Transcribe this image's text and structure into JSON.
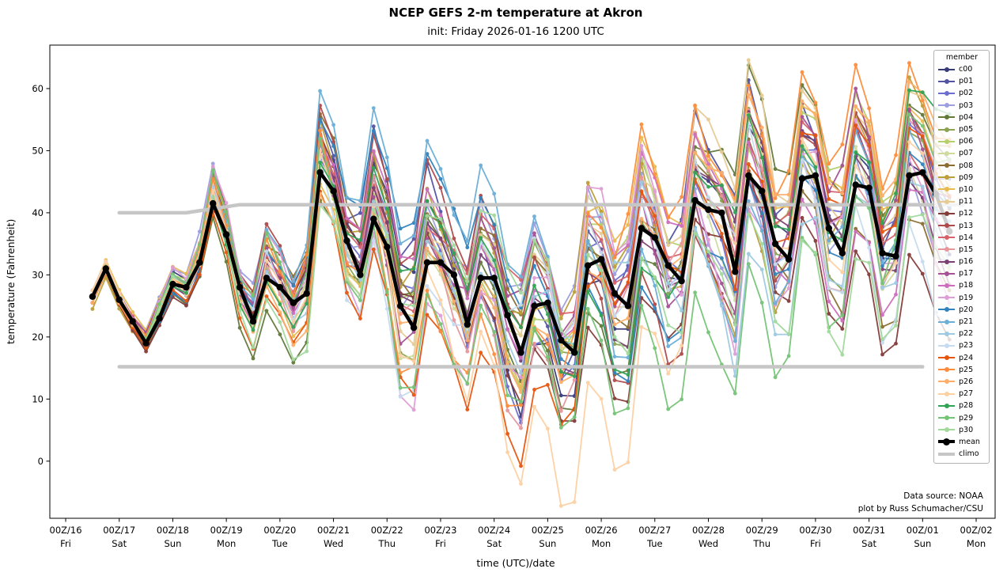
{
  "title": "NCEP GEFS 2-m temperature at Akron",
  "subtitle": "init: Friday 2026-01-16 1200 UTC",
  "annotations": {
    "source": "Data source: NOAA",
    "credit": "plot by Russ Schumacher/CSU"
  },
  "legend": {
    "title": "member"
  },
  "axes": {
    "xlabel": "time (UTC)/date",
    "ylabel": "temperature (Fahrenheit)",
    "yticks": [
      0,
      10,
      20,
      30,
      40,
      50,
      60
    ],
    "ylim": [
      -9.2,
      67
    ],
    "xlim_hours": [
      -19.1,
      404.5
    ],
    "xticks": [
      {
        "t": -12,
        "utc": "00Z/16",
        "day": "Fri"
      },
      {
        "t": 12,
        "utc": "00Z/17",
        "day": "Sat"
      },
      {
        "t": 36,
        "utc": "00Z/18",
        "day": "Sun"
      },
      {
        "t": 60,
        "utc": "00Z/19",
        "day": "Mon"
      },
      {
        "t": 84,
        "utc": "00Z/20",
        "day": "Tue"
      },
      {
        "t": 108,
        "utc": "00Z/21",
        "day": "Wed"
      },
      {
        "t": 132,
        "utc": "00Z/22",
        "day": "Thu"
      },
      {
        "t": 156,
        "utc": "00Z/23",
        "day": "Fri"
      },
      {
        "t": 180,
        "utc": "00Z/24",
        "day": "Sat"
      },
      {
        "t": 204,
        "utc": "00Z/25",
        "day": "Sun"
      },
      {
        "t": 228,
        "utc": "00Z/26",
        "day": "Mon"
      },
      {
        "t": 252,
        "utc": "00Z/27",
        "day": "Tue"
      },
      {
        "t": 276,
        "utc": "00Z/28",
        "day": "Wed"
      },
      {
        "t": 300,
        "utc": "00Z/29",
        "day": "Thu"
      },
      {
        "t": 324,
        "utc": "00Z/30",
        "day": "Fri"
      },
      {
        "t": 348,
        "utc": "00Z/31",
        "day": "Sat"
      },
      {
        "t": 372,
        "utc": "00Z/01",
        "day": "Sun"
      },
      {
        "t": 396,
        "utc": "00Z/02",
        "day": "Mon"
      }
    ]
  },
  "chart_data": {
    "type": "line",
    "time_start_hours": 0,
    "time_step_hours": 6,
    "time_end_hours": 384,
    "units": "degrees Fahrenheit, x = hours since init 12Z Jan 16",
    "mean": {
      "label": "mean",
      "color": "#000000",
      "values": [
        26.5,
        31,
        26,
        22.5,
        19,
        23,
        28.5,
        28,
        32,
        41.5,
        36.5,
        28,
        22.5,
        29.5,
        28,
        25.5,
        27,
        46.5,
        43.5,
        35.5,
        30,
        39,
        34.5,
        25,
        21.5,
        32,
        32,
        30,
        22,
        29.5,
        29.5,
        23.5,
        17.5,
        25,
        25.5,
        19.5,
        17.5,
        31.5,
        32.5,
        27,
        25,
        37.5,
        36,
        31.5,
        29,
        42,
        40.5,
        40,
        30.5,
        46,
        43.5,
        35,
        32.5,
        45.5,
        46,
        37.5,
        33.5,
        44.5,
        44,
        33.5,
        33,
        46,
        46.5,
        43,
        37
      ]
    },
    "climo": {
      "label": "climo",
      "color": "#c6c6c6",
      "max": {
        "t": [
          12,
          42,
          66,
          390
        ],
        "v": [
          40,
          40,
          41.3,
          41.3
        ]
      },
      "min": {
        "t": [
          12,
          372
        ],
        "v": [
          15.2,
          15.2
        ]
      }
    },
    "members_note": "31 GEFS members; deviations from ensemble mean estimated at 48-h control points (t=0,48,...,384 h)",
    "members": [
      {
        "label": "c00",
        "color": "#393b79",
        "dev48h": [
          0,
          2,
          3,
          10,
          -10,
          -2,
          6,
          3,
          -2
        ]
      },
      {
        "label": "p01",
        "color": "#5254a3",
        "dev48h": [
          0,
          -1,
          4,
          12,
          -4,
          6,
          10,
          6,
          8
        ]
      },
      {
        "label": "p02",
        "color": "#6b6ecf",
        "dev48h": [
          1,
          2,
          -3,
          8,
          -10,
          4,
          -2,
          8,
          2
        ]
      },
      {
        "label": "p03",
        "color": "#9c9ede",
        "dev48h": [
          0,
          3,
          5,
          6,
          6,
          8,
          -4,
          -2,
          -6
        ]
      },
      {
        "label": "p04",
        "color": "#637939",
        "dev48h": [
          -1,
          -2,
          -6,
          2,
          -4,
          -8,
          12,
          10,
          14
        ]
      },
      {
        "label": "p05",
        "color": "#8ca252",
        "dev48h": [
          0,
          1,
          2,
          -4,
          8,
          -6,
          8,
          -4,
          6
        ]
      },
      {
        "label": "p06",
        "color": "#b5cf6b",
        "dev48h": [
          0,
          2,
          -2,
          6,
          -8,
          10,
          2,
          12,
          4
        ]
      },
      {
        "label": "p07",
        "color": "#cedb9c",
        "dev48h": [
          1,
          0,
          4,
          -6,
          2,
          12,
          -6,
          2,
          -4
        ]
      },
      {
        "label": "p08",
        "color": "#8c6d31",
        "dev48h": [
          0,
          1,
          6,
          4,
          10,
          -4,
          4,
          -6,
          -10
        ]
      },
      {
        "label": "p09",
        "color": "#bd9e39",
        "dev48h": [
          -2,
          2,
          2,
          12,
          4,
          6,
          -8,
          4,
          10
        ]
      },
      {
        "label": "p10",
        "color": "#e7ba52",
        "dev48h": [
          1,
          3,
          -4,
          2,
          -6,
          14,
          6,
          10,
          8
        ]
      },
      {
        "label": "p11",
        "color": "#e7cb94",
        "dev48h": [
          0,
          1,
          3,
          -2,
          6,
          2,
          14,
          8,
          12
        ]
      },
      {
        "label": "p12",
        "color": "#843c39",
        "dev48h": [
          0,
          -2,
          2,
          6,
          -8,
          -18,
          2,
          -12,
          -20
        ]
      },
      {
        "label": "p13",
        "color": "#ad494a",
        "dev48h": [
          -1,
          1,
          8,
          14,
          2,
          -10,
          -6,
          4,
          6
        ]
      },
      {
        "label": "p14",
        "color": "#d6616b",
        "dev48h": [
          0,
          2,
          6,
          -2,
          12,
          6,
          -2,
          10,
          2
        ]
      },
      {
        "label": "p15",
        "color": "#e7969c",
        "dev48h": [
          0,
          1,
          -2,
          4,
          -12,
          2,
          8,
          -6,
          10
        ]
      },
      {
        "label": "p16",
        "color": "#7b4173",
        "dev48h": [
          0,
          -1,
          1,
          6,
          -2,
          -6,
          10,
          2,
          -8
        ]
      },
      {
        "label": "p17",
        "color": "#a55194",
        "dev48h": [
          0,
          2,
          4,
          -4,
          8,
          4,
          -10,
          12,
          6
        ]
      },
      {
        "label": "p18",
        "color": "#ce6dbd",
        "dev48h": [
          1,
          1,
          -1,
          10,
          2,
          8,
          4,
          -8,
          -2
        ]
      },
      {
        "label": "p19",
        "color": "#de9ed6",
        "dev48h": [
          0,
          3,
          2,
          -8,
          -4,
          10,
          -8,
          6,
          -12
        ]
      },
      {
        "label": "p20",
        "color": "#3182bd",
        "dev48h": [
          0,
          -2,
          6,
          16,
          6,
          -12,
          -4,
          -2,
          4
        ]
      },
      {
        "label": "p21",
        "color": "#6baed6",
        "dev48h": [
          0,
          1,
          8,
          14,
          14,
          -8,
          -12,
          6,
          2
        ]
      },
      {
        "label": "p22",
        "color": "#9ecae1",
        "dev48h": [
          0,
          2,
          -4,
          4,
          -2,
          6,
          -14,
          -4,
          -6
        ]
      },
      {
        "label": "p23",
        "color": "#c6dbef",
        "dev48h": [
          1,
          0,
          2,
          -10,
          4,
          2,
          6,
          -10,
          -14
        ]
      },
      {
        "label": "p24",
        "color": "#e6550d",
        "dev48h": [
          -1,
          -1,
          -3,
          -14,
          -16,
          6,
          -6,
          10,
          8
        ]
      },
      {
        "label": "p25",
        "color": "#fd8d3c",
        "dev48h": [
          0,
          2,
          4,
          -8,
          -10,
          12,
          10,
          16,
          12
        ]
      },
      {
        "label": "p26",
        "color": "#fdae6b",
        "dev48h": [
          -1,
          1,
          -6,
          2,
          -8,
          -2,
          12,
          8,
          14
        ]
      },
      {
        "label": "p27",
        "color": "#fdd0a2",
        "dev48h": [
          1,
          0,
          2,
          -6,
          -20,
          -22,
          4,
          -2,
          6
        ]
      },
      {
        "label": "p28",
        "color": "#31a354",
        "dev48h": [
          0,
          1,
          -4,
          8,
          6,
          -14,
          8,
          4,
          16
        ]
      },
      {
        "label": "p29",
        "color": "#74c476",
        "dev48h": [
          0,
          2,
          2,
          -6,
          -10,
          -18,
          -16,
          -12,
          10
        ]
      },
      {
        "label": "p30",
        "color": "#a1d99b",
        "dev48h": [
          0,
          1,
          -8,
          4,
          10,
          -6,
          -8,
          -16,
          -4
        ]
      }
    ]
  }
}
